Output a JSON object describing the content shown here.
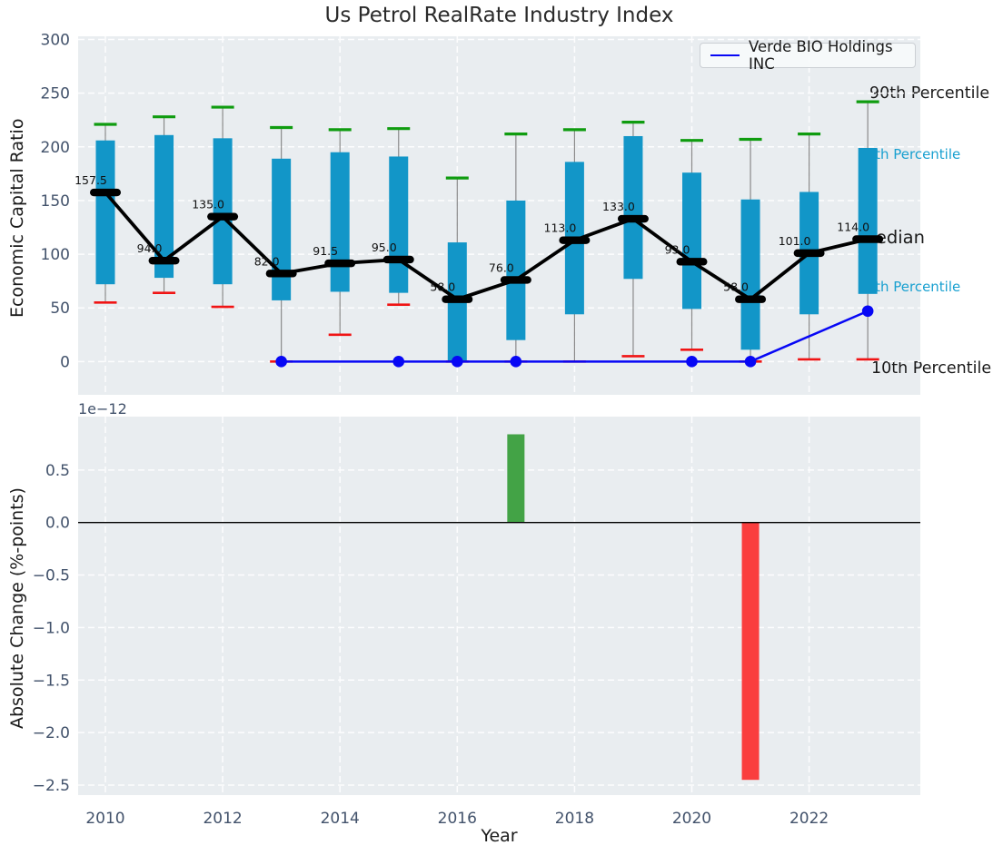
{
  "title": "Us Petrol RealRate Industry Index",
  "legend": {
    "label": "Verde BIO Holdings INC"
  },
  "annotations": {
    "p90": "90th Percentile",
    "p75": "75th Percentile",
    "median": "Median",
    "p25": "25th Percentile",
    "p10": "10th Percentile"
  },
  "colors": {
    "box": "#1296c8",
    "cap_high": "#0f9c0f",
    "cap_low": "#f01414",
    "median": "#000000",
    "verde": "#0707f5",
    "bar_positive": "#43a346",
    "bar_negative": "#fa3e3e",
    "annotation_cyan": "#18a0d0",
    "axes_background": "#e9edf0"
  },
  "chart_data": [
    {
      "type": "boxwhisker+line",
      "title": "Us Petrol RealRate Industry Index",
      "xlabel": "Year",
      "ylabel": "Economic Capital Ratio",
      "grid": true,
      "legend_position": "upper right",
      "x": [
        2010,
        2011,
        2012,
        2013,
        2014,
        2015,
        2016,
        2017,
        2018,
        2019,
        2020,
        2021,
        2022,
        2023
      ],
      "xticks": [
        2010,
        2012,
        2014,
        2016,
        2018,
        2020,
        2022
      ],
      "yticks": [
        0,
        50,
        100,
        150,
        200,
        250,
        300
      ],
      "ylim": [
        -31,
        303
      ],
      "series": [
        {
          "name": "90th Percentile",
          "role": "upper_whisker",
          "values": [
            221,
            228,
            237,
            218,
            216,
            217,
            171,
            212,
            216,
            223,
            206,
            207,
            212,
            242
          ]
        },
        {
          "name": "75th Percentile",
          "role": "box_top",
          "values": [
            206,
            211,
            208,
            189,
            195,
            191,
            111,
            150,
            186,
            210,
            176,
            151,
            158,
            199
          ]
        },
        {
          "name": "Median",
          "role": "median",
          "values": [
            157.5,
            94.0,
            135.0,
            82.0,
            91.5,
            95.0,
            58.0,
            76.0,
            113.0,
            133.0,
            93.0,
            58.0,
            101.0,
            114.0
          ]
        },
        {
          "name": "25th Percentile",
          "role": "box_bottom",
          "values": [
            72,
            78,
            72,
            57,
            65,
            64,
            1,
            20,
            44,
            77,
            49,
            11,
            44,
            63
          ]
        },
        {
          "name": "10th Percentile",
          "role": "lower_whisker",
          "values": [
            55,
            64,
            51,
            0,
            25,
            53,
            0,
            0,
            0,
            5,
            11,
            0,
            2,
            2
          ]
        },
        {
          "name": "Verde BIO Holdings INC",
          "role": "company_line",
          "x": [
            2013,
            2015,
            2016,
            2017,
            2020,
            2021,
            2023
          ],
          "values": [
            0,
            0,
            0,
            0,
            0,
            0,
            47
          ]
        }
      ]
    },
    {
      "type": "bar",
      "ylabel": "Absolute Change (%-points)",
      "offset_text": "1e−12",
      "x": [
        2017,
        2021
      ],
      "values": [
        8.4e-13,
        -2.45e-12
      ],
      "yticks": [
        "0.5",
        "0.0",
        "−0.5",
        "−1.0",
        "−1.5",
        "−2.0",
        "−2.5"
      ],
      "ylim": [
        -2.6e-12,
        1e-12
      ],
      "baseline": 0,
      "grid": true
    }
  ]
}
